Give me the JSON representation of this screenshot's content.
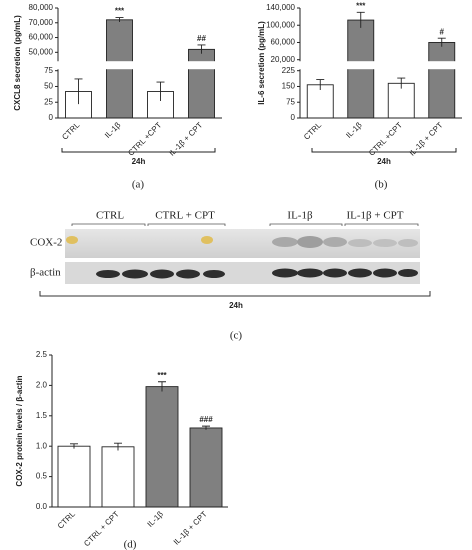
{
  "chart_data": [
    {
      "type": "bar",
      "label": "(a)",
      "ylabel": "CXCL8 secretion (pg/mL)",
      "categories": [
        "CTRL",
        "IL-1β",
        "CTRL +CPT",
        "IL-1β + CPT"
      ],
      "values": [
        42,
        72000,
        42,
        52000
      ],
      "errors": [
        20,
        1500,
        15,
        3000
      ],
      "colors": [
        "#ffffff",
        "#808080",
        "#ffffff",
        "#808080"
      ],
      "annotations": [
        null,
        "***",
        null,
        "##"
      ],
      "ylim": [
        0,
        80000
      ],
      "ysegments": [
        [
          0,
          75
        ],
        [
          45000,
          80000
        ]
      ],
      "yticks": [
        0,
        25,
        50,
        75,
        {
          "value": 50000,
          "label": "50,000"
        },
        {
          "value": 60000,
          "label": "60,000"
        },
        {
          "value": 70000,
          "label": "70,000"
        },
        {
          "value": 80000,
          "label": "80,000"
        }
      ],
      "group_label": "24h"
    },
    {
      "type": "bar",
      "label": "(b)",
      "ylabel": "IL-6 secretion (pg/mL)",
      "categories": [
        "CTRL",
        "IL-1β",
        "CTRL +CPT",
        "IL-1β + CPT"
      ],
      "values": [
        158,
        112000,
        165,
        60000
      ],
      "errors": [
        25,
        18000,
        25,
        10000
      ],
      "colors": [
        "#ffffff",
        "#808080",
        "#ffffff",
        "#808080"
      ],
      "annotations": [
        null,
        "***",
        null,
        "#"
      ],
      "ylim": [
        0,
        140000
      ],
      "ysegments": [
        [
          0,
          225
        ],
        [
          20000,
          140000
        ]
      ],
      "yticks": [
        0,
        75,
        150,
        225,
        {
          "value": 20000,
          "label": "20,000"
        },
        {
          "value": 60000,
          "label": "60,000"
        },
        {
          "value": 100000,
          "label": "100,000"
        },
        {
          "value": 140000,
          "label": "140,000"
        }
      ],
      "group_label": "24h"
    },
    {
      "type": "bar",
      "label": "(d)",
      "ylabel": "COX-2 protein levels / β-actin",
      "categories": [
        "CTRL",
        "CTRL + CPT",
        "IL-1β",
        "IL-1β + CPT"
      ],
      "values": [
        1.0,
        0.99,
        1.98,
        1.3
      ],
      "errors": [
        0.04,
        0.06,
        0.08,
        0.03
      ],
      "colors": [
        "#ffffff",
        "#ffffff",
        "#808080",
        "#808080"
      ],
      "annotations": [
        null,
        null,
        "***",
        "###"
      ],
      "ylim": [
        0,
        2.5
      ],
      "yticks": [
        {
          "value": 0,
          "label": "0.0"
        },
        0.5,
        {
          "value": 1,
          "label": "1.0"
        },
        1.5,
        {
          "value": 2,
          "label": "2.0"
        },
        2.5
      ]
    }
  ],
  "blot": {
    "label": "(c)",
    "groups": [
      "CTRL",
      "CTRL + CPT",
      "IL-1β",
      "IL-1β + CPT"
    ],
    "rows": [
      "COX-2",
      "β-actin"
    ],
    "time": "24h"
  }
}
